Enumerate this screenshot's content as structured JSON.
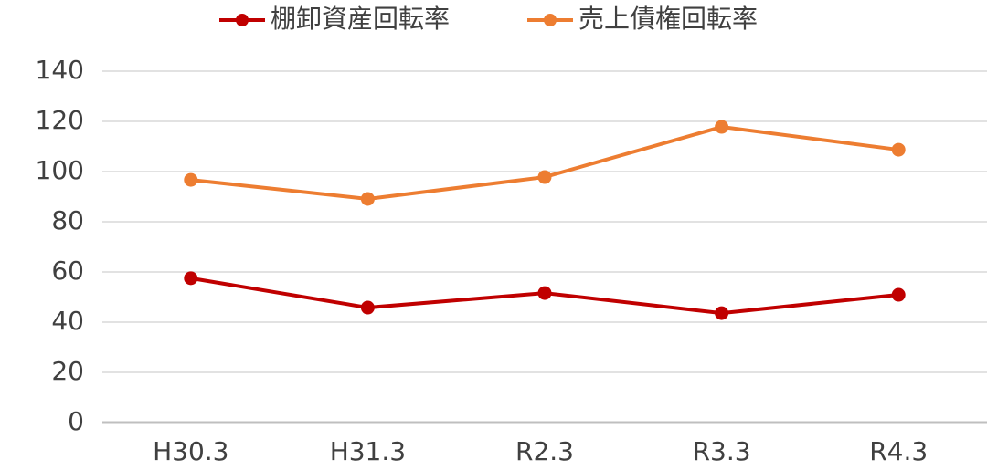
{
  "chart_data": {
    "type": "line",
    "categories": [
      "H30.3",
      "H31.3",
      "R2.3",
      "R3.3",
      "R4.3"
    ],
    "series": [
      {
        "name": "棚卸資産回転率",
        "color": "#c00000",
        "values": [
          57.5,
          45.8,
          51.6,
          43.6,
          50.9
        ]
      },
      {
        "name": "売上債権回転率",
        "color": "#ed7d31",
        "values": [
          96.7,
          89.1,
          97.8,
          117.8,
          108.7
        ]
      }
    ],
    "ylim": [
      0,
      140
    ],
    "yticks": [
      0,
      20,
      40,
      60,
      80,
      100,
      120,
      140
    ],
    "grid": true,
    "legend": "top"
  }
}
